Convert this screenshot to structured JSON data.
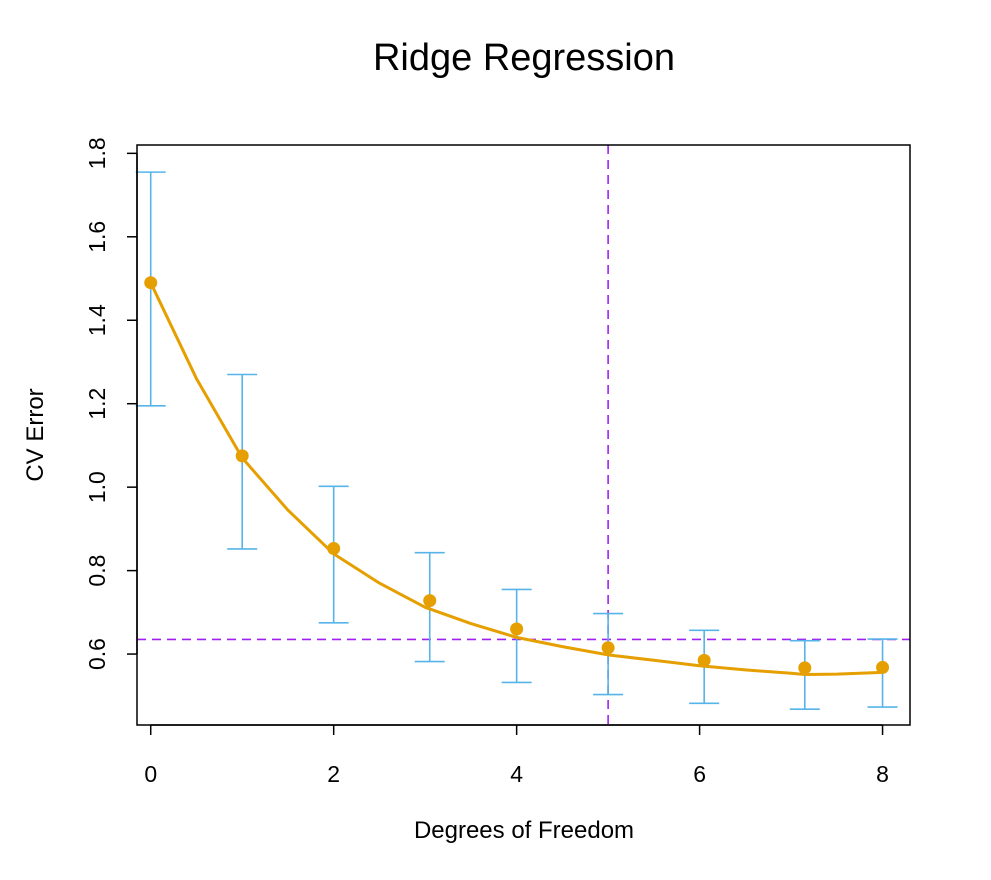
{
  "chart_data": {
    "type": "scatter",
    "title": "Ridge Regression",
    "xlabel": "Degrees of Freedom",
    "ylabel": "CV Error",
    "xlim": [
      -0.15,
      8.3
    ],
    "ylim": [
      0.43,
      1.82
    ],
    "xticks": [
      0,
      2,
      4,
      6,
      8
    ],
    "xtick_labels": [
      "0",
      "2",
      "4",
      "6",
      "8"
    ],
    "yticks": [
      0.6,
      0.8,
      1.0,
      1.2,
      1.4,
      1.6,
      1.8
    ],
    "ytick_labels": [
      "0.6",
      "0.8",
      "1.0",
      "1.2",
      "1.4",
      "1.6",
      "1.8"
    ],
    "grid": false,
    "legend": "none",
    "colors": {
      "points": "#E69F00",
      "curve": "#E69F00",
      "error_bars": "#56B4E9",
      "reference_lines": "#A020F0"
    },
    "points": [
      {
        "x": 0.0,
        "y": 1.49,
        "lower": 1.195,
        "upper": 1.755
      },
      {
        "x": 1.0,
        "y": 1.075,
        "lower": 0.852,
        "upper": 1.27
      },
      {
        "x": 2.0,
        "y": 0.853,
        "lower": 0.675,
        "upper": 1.002
      },
      {
        "x": 3.05,
        "y": 0.728,
        "lower": 0.582,
        "upper": 0.843
      },
      {
        "x": 4.0,
        "y": 0.66,
        "lower": 0.532,
        "upper": 0.755
      },
      {
        "x": 5.0,
        "y": 0.615,
        "lower": 0.503,
        "upper": 0.697
      },
      {
        "x": 6.05,
        "y": 0.585,
        "lower": 0.482,
        "upper": 0.657
      },
      {
        "x": 7.15,
        "y": 0.567,
        "lower": 0.468,
        "upper": 0.632
      },
      {
        "x": 8.0,
        "y": 0.568,
        "lower": 0.473,
        "upper": 0.636
      }
    ],
    "curve": [
      [
        0,
        1.49
      ],
      [
        0.5,
        1.26
      ],
      [
        1,
        1.07
      ],
      [
        1.5,
        0.945
      ],
      [
        2,
        0.84
      ],
      [
        2.5,
        0.77
      ],
      [
        3,
        0.712
      ],
      [
        3.5,
        0.673
      ],
      [
        4,
        0.64
      ],
      [
        4.5,
        0.618
      ],
      [
        5,
        0.598
      ],
      [
        5.5,
        0.585
      ],
      [
        6,
        0.572
      ],
      [
        6.5,
        0.562
      ],
      [
        7,
        0.554
      ],
      [
        7.15,
        0.551
      ],
      [
        7.5,
        0.552
      ],
      [
        8,
        0.556
      ]
    ],
    "reference_lines": {
      "vertical_x": 5.0,
      "horizontal_y": 0.635
    }
  }
}
